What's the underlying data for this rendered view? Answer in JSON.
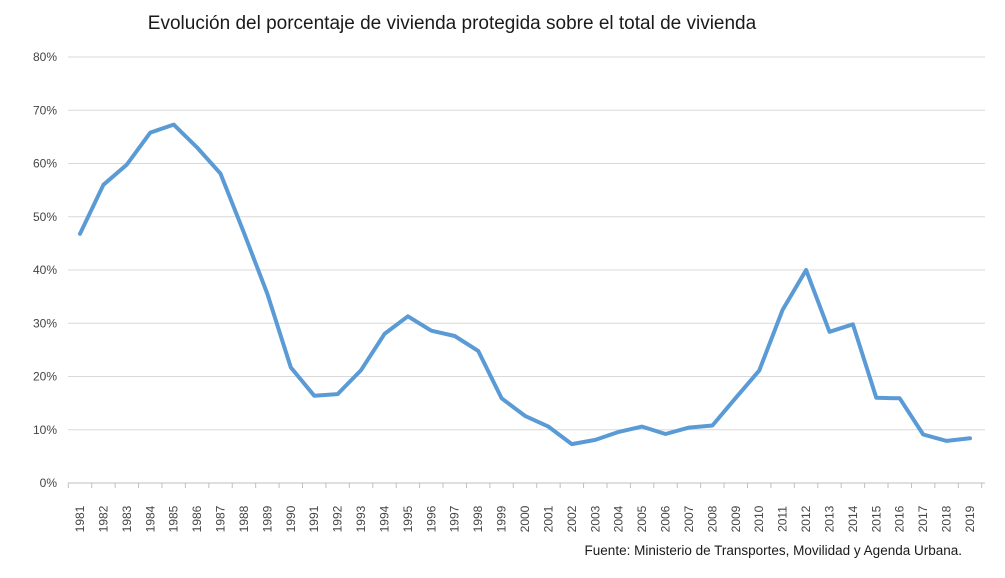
{
  "chart_data": {
    "type": "line",
    "title": "Evolución del porcentaje de vivienda protegida sobre el total de vivienda",
    "source": "Fuente: Ministerio de Transportes, Movilidad y Agenda Urbana.",
    "xlabel": "",
    "ylabel": "",
    "ylim": [
      0,
      80
    ],
    "yticks": [
      "0%",
      "10%",
      "20%",
      "30%",
      "40%",
      "50%",
      "60%",
      "70%",
      "80%"
    ],
    "grid": true,
    "legend": "none",
    "x": [
      "1981",
      "1982",
      "1983",
      "1984",
      "1985",
      "1986",
      "1987",
      "1988",
      "1989",
      "1990",
      "1991",
      "1992",
      "1993",
      "1994",
      "1995",
      "1996",
      "1997",
      "1998",
      "1999",
      "2000",
      "2001",
      "2002",
      "2003",
      "2004",
      "2005",
      "2006",
      "2007",
      "2008",
      "2009",
      "2010",
      "2011",
      "2012",
      "2013",
      "2014",
      "2015",
      "2016",
      "2017",
      "2018",
      "2019"
    ],
    "series": [
      {
        "color": "#5b9bd5",
        "values": [
          46.8,
          56.0,
          59.8,
          65.8,
          67.3,
          63.0,
          58.1,
          47.0,
          35.5,
          21.7,
          16.4,
          16.7,
          21.2,
          28.0,
          31.3,
          28.6,
          27.6,
          24.8,
          15.9,
          12.6,
          10.6,
          7.3,
          8.1,
          9.6,
          10.6,
          9.2,
          10.4,
          10.8,
          16.0,
          21.1,
          32.5,
          40.0,
          28.4,
          29.8,
          16.0,
          15.9,
          9.1,
          7.9,
          8.4
        ]
      }
    ]
  }
}
